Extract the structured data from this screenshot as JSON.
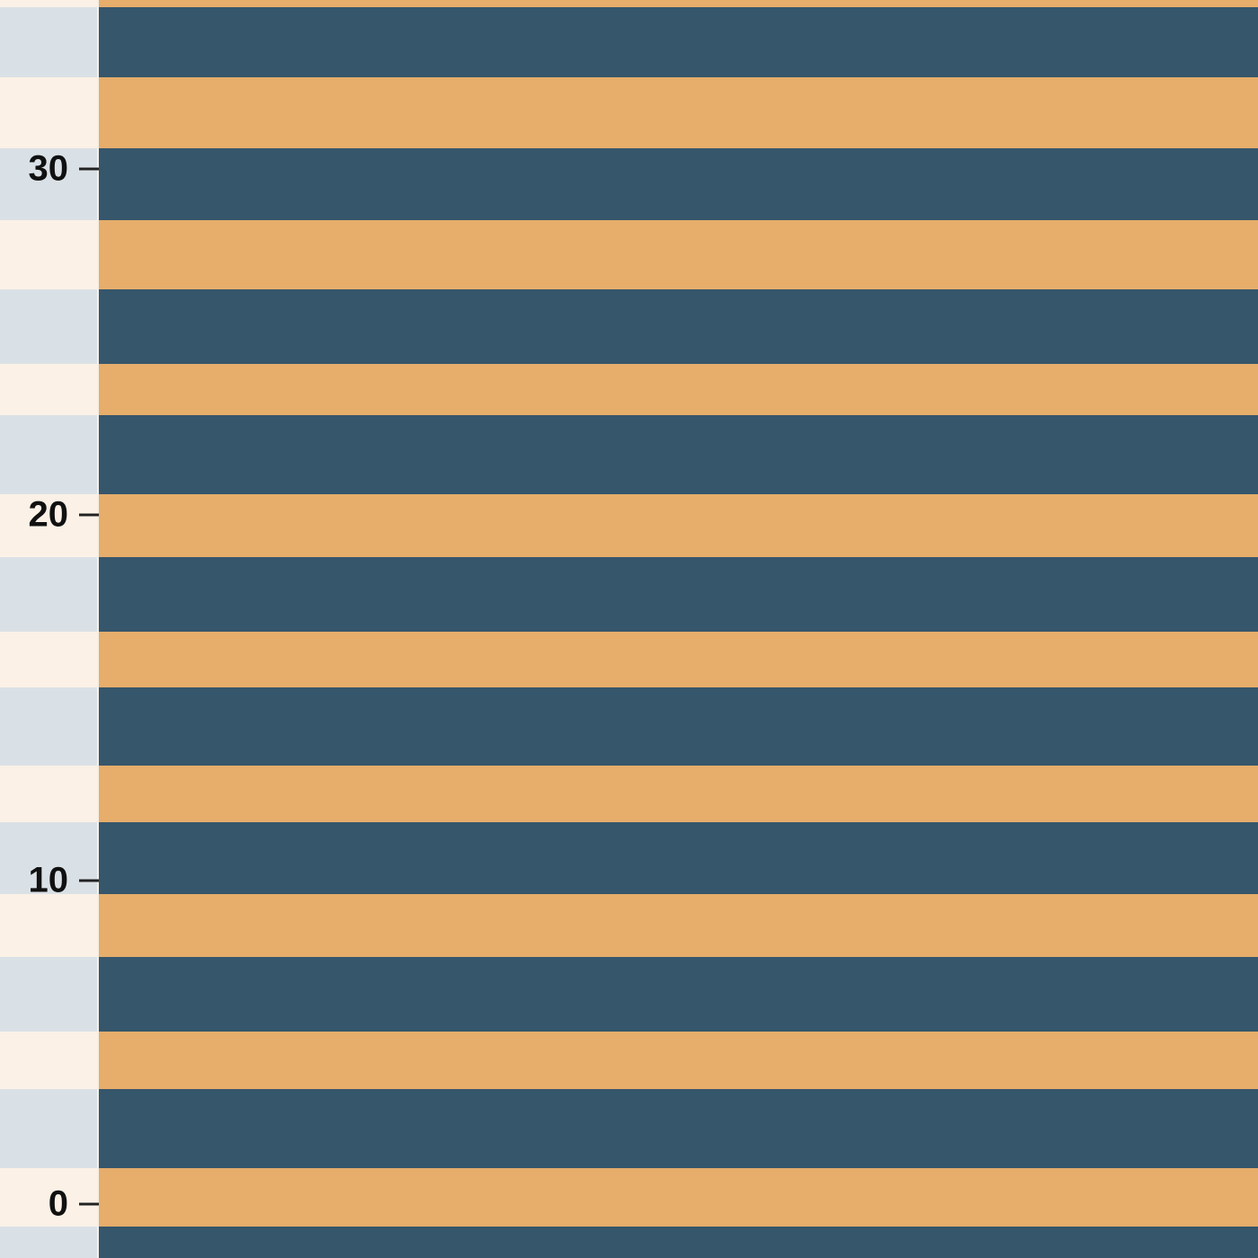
{
  "pattern": {
    "colors": {
      "navy": "#36566b",
      "orange": "#e6ad6b",
      "ruler_light": "#dae1e6",
      "ruler_cream": "#fbf1e6"
    },
    "style": "horizontal brush-stroke stripes",
    "stripes": [
      {
        "color": "orange",
        "from": 0,
        "to": 8
      },
      {
        "color": "navy",
        "from": 8,
        "to": 86
      },
      {
        "color": "orange",
        "from": 86,
        "to": 165
      },
      {
        "color": "navy",
        "from": 165,
        "to": 245
      },
      {
        "color": "orange",
        "from": 245,
        "to": 322
      },
      {
        "color": "navy",
        "from": 322,
        "to": 405
      },
      {
        "color": "orange",
        "from": 405,
        "to": 462
      },
      {
        "color": "navy",
        "from": 462,
        "to": 550
      },
      {
        "color": "orange",
        "from": 550,
        "to": 620
      },
      {
        "color": "navy",
        "from": 620,
        "to": 703
      },
      {
        "color": "orange",
        "from": 703,
        "to": 765
      },
      {
        "color": "navy",
        "from": 765,
        "to": 852
      },
      {
        "color": "orange",
        "from": 852,
        "to": 915
      },
      {
        "color": "navy",
        "from": 915,
        "to": 995
      },
      {
        "color": "orange",
        "from": 995,
        "to": 1065
      },
      {
        "color": "navy",
        "from": 1065,
        "to": 1148
      },
      {
        "color": "orange",
        "from": 1148,
        "to": 1212
      },
      {
        "color": "navy",
        "from": 1212,
        "to": 1300
      },
      {
        "color": "orange",
        "from": 1300,
        "to": 1365
      },
      {
        "color": "navy",
        "from": 1365,
        "to": 1400
      }
    ]
  },
  "ruler": {
    "ticks": [
      {
        "label": "30",
        "pos": 188
      },
      {
        "label": "20",
        "pos": 573
      },
      {
        "label": "10",
        "pos": 980
      },
      {
        "label": "0",
        "pos": 1340
      }
    ]
  }
}
